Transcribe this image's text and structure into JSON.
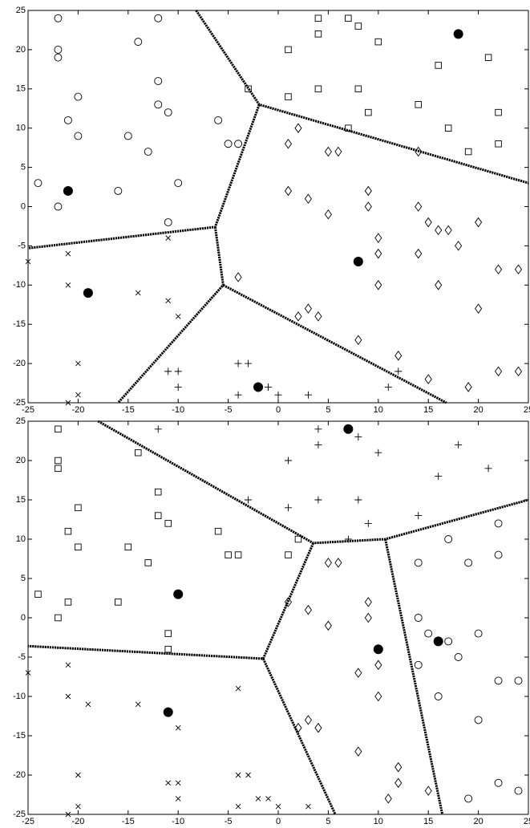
{
  "chart_data": [
    {
      "type": "scatter",
      "xlim": [
        -25,
        25
      ],
      "ylim": [
        -25,
        25
      ],
      "xticks": [
        -25,
        -20,
        -15,
        -10,
        -5,
        0,
        5,
        10,
        15,
        20,
        25
      ],
      "yticks": [
        -25,
        -20,
        -15,
        -10,
        -5,
        0,
        5,
        10,
        15,
        20,
        25
      ],
      "series": [
        {
          "marker": "circle",
          "color": "#000000",
          "x": [
            -22,
            -22,
            -22,
            -20,
            -21,
            -20,
            -24,
            -22,
            -15,
            -14,
            -12,
            -12,
            -12,
            -11,
            -13,
            -10,
            -16,
            -11,
            -6,
            -5,
            -4
          ],
          "y": [
            24,
            20,
            19,
            14,
            11,
            9,
            3,
            0,
            9,
            21,
            24,
            16,
            13,
            12,
            7,
            3,
            2,
            -2,
            11,
            8,
            8
          ]
        },
        {
          "marker": "square",
          "color": "#000000",
          "x": [
            4,
            4,
            7,
            8,
            10,
            1,
            16,
            21,
            -3,
            4,
            8,
            1,
            9,
            14,
            22,
            7,
            17,
            22,
            19
          ],
          "y": [
            24,
            22,
            24,
            23,
            21,
            20,
            18,
            19,
            15,
            15,
            15,
            14,
            12,
            13,
            12,
            10,
            10,
            8,
            7
          ]
        },
        {
          "marker": "diamond",
          "color": "#000000",
          "x": [
            2,
            1,
            5,
            6,
            14,
            1,
            3,
            9,
            9,
            14,
            5,
            10,
            15,
            16,
            17,
            20,
            18,
            10,
            14,
            22,
            24,
            -4,
            10,
            16,
            3,
            20,
            2,
            4,
            8,
            12,
            15,
            22,
            24,
            19
          ],
          "y": [
            10,
            8,
            7,
            7,
            7,
            2,
            1,
            2,
            0,
            0,
            -1,
            -4,
            -2,
            -3,
            -3,
            -2,
            -5,
            -6,
            -6,
            -8,
            -8,
            -9,
            -10,
            -10,
            -13,
            -13,
            -14,
            -14,
            -17,
            -19,
            -22,
            -21,
            -21,
            -23
          ]
        },
        {
          "marker": "plus",
          "color": "#000000",
          "x": [
            -4,
            -3,
            -11,
            -10,
            -10,
            -1,
            -4,
            0,
            3,
            12,
            11
          ],
          "y": [
            -20,
            -20,
            -21,
            -21,
            -23,
            -23,
            -24,
            -24,
            -24,
            -21,
            -23
          ]
        },
        {
          "marker": "cross",
          "color": "#000000",
          "x": [
            -25,
            -21,
            -21,
            -14,
            -11,
            -11,
            -10,
            -20,
            -20,
            -21
          ],
          "y": [
            -7,
            -6,
            -10,
            -11,
            -12,
            -4,
            -14,
            -20,
            -24,
            -25
          ]
        },
        {
          "marker": "filled",
          "color": "#000000",
          "x": [
            -21,
            -19,
            8,
            18,
            -2
          ],
          "y": [
            2,
            -11,
            -7,
            22,
            -23
          ]
        }
      ],
      "boundaries": [
        {
          "x": [
            -8.2,
            -1.9,
            25
          ],
          "y": [
            25,
            13,
            3
          ]
        },
        {
          "x": [
            -1.9,
            -6.3,
            -25
          ],
          "y": [
            13,
            -2.6,
            -5.3
          ]
        },
        {
          "x": [
            -6.3,
            -5.5,
            -16
          ],
          "y": [
            -2.6,
            -10,
            -25
          ]
        },
        {
          "x": [
            -5.5,
            16.8
          ],
          "y": [
            -10,
            -25
          ]
        }
      ]
    },
    {
      "type": "scatter",
      "xlim": [
        -25,
        25
      ],
      "ylim": [
        -25,
        25
      ],
      "xticks": [
        -25,
        -20,
        -15,
        -10,
        -5,
        0,
        5,
        10,
        15,
        20,
        25
      ],
      "yticks": [
        -25,
        -20,
        -15,
        -10,
        -5,
        0,
        5,
        10,
        15,
        20,
        25
      ],
      "series": [
        {
          "marker": "square",
          "color": "#000000",
          "x": [
            -22,
            -22,
            -22,
            -20,
            -21,
            -20,
            -24,
            -22,
            -16,
            -21,
            -15,
            -14,
            -12,
            -12,
            -11,
            -13,
            -11,
            -11,
            -6,
            -5,
            -4,
            1,
            2
          ],
          "y": [
            24,
            20,
            19,
            14,
            11,
            9,
            3,
            0,
            2,
            2,
            9,
            21,
            16,
            13,
            12,
            7,
            -2,
            -4,
            11,
            8,
            8,
            8,
            10
          ]
        },
        {
          "marker": "plus",
          "color": "#000000",
          "x": [
            4,
            4,
            8,
            10,
            1,
            -12,
            18,
            21,
            16,
            -3,
            4,
            8,
            1,
            14,
            9,
            7
          ],
          "y": [
            24,
            22,
            23,
            21,
            20,
            24,
            22,
            19,
            18,
            15,
            15,
            15,
            14,
            13,
            12,
            10
          ]
        },
        {
          "marker": "circle",
          "color": "#000000",
          "x": [
            22,
            17,
            22,
            19,
            14,
            14,
            15,
            17,
            20,
            18,
            14,
            22,
            24,
            16,
            20,
            19,
            22,
            24
          ],
          "y": [
            12,
            10,
            8,
            7,
            7,
            0,
            -2,
            -3,
            -2,
            -5,
            -6,
            -8,
            -8,
            -10,
            -13,
            -23,
            -21,
            -22
          ]
        },
        {
          "marker": "diamond",
          "color": "#000000",
          "x": [
            5,
            6,
            1,
            9,
            3,
            9,
            5,
            10,
            8,
            10,
            3,
            2,
            4,
            8,
            12,
            12,
            11,
            15
          ],
          "y": [
            7,
            7,
            2,
            2,
            1,
            0,
            -1,
            -6,
            -7,
            -10,
            -13,
            -14,
            -14,
            -17,
            -19,
            -21,
            -23,
            -22
          ]
        },
        {
          "marker": "cross",
          "color": "#000000",
          "x": [
            -25,
            -21,
            -21,
            -19,
            -14,
            -10,
            -4,
            -20,
            -20,
            -11,
            -10,
            -10,
            -4,
            -3,
            -2,
            -1,
            -4,
            0,
            3,
            -21
          ],
          "y": [
            -7,
            -6,
            -10,
            -11,
            -11,
            -14,
            -9,
            -20,
            -24,
            -21,
            -21,
            -23,
            -20,
            -20,
            -23,
            -23,
            -24,
            -24,
            -24,
            -25
          ]
        },
        {
          "marker": "filled",
          "color": "#000000",
          "x": [
            7,
            -10,
            10,
            16,
            -11
          ],
          "y": [
            24,
            3,
            -4,
            -3,
            -12
          ]
        }
      ],
      "boundaries": [
        {
          "x": [
            -18,
            3.5,
            10.7,
            25
          ],
          "y": [
            25,
            9.5,
            10,
            15
          ]
        },
        {
          "x": [
            3.5,
            -1.5,
            -25
          ],
          "y": [
            9.5,
            -5.2,
            -3.6
          ]
        },
        {
          "x": [
            -1.5,
            5.7
          ],
          "y": [
            -5.2,
            -25
          ]
        },
        {
          "x": [
            10.7,
            16.4
          ],
          "y": [
            10,
            -25
          ]
        }
      ]
    }
  ]
}
